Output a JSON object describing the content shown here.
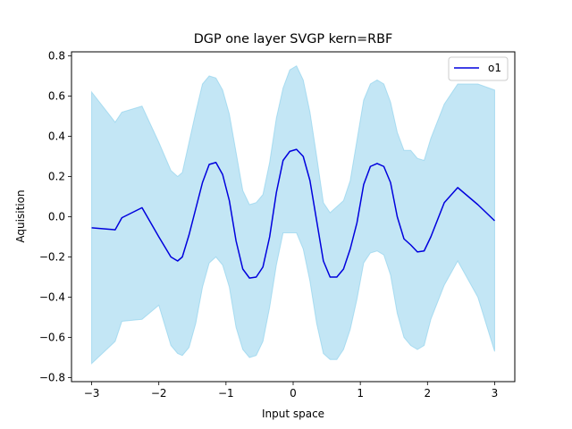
{
  "chart_data": {
    "type": "line",
    "title": "DGP one layer SVGP kern=RBF",
    "xlabel": "Input space",
    "ylabel": "Aquisition",
    "xlim": [
      -3.3,
      3.3
    ],
    "ylim": [
      -0.82,
      0.82
    ],
    "x_ticks": [
      -3,
      -2,
      -1,
      0,
      1,
      2,
      3
    ],
    "x_tick_labels": [
      "−3",
      "−2",
      "−1",
      "0",
      "1",
      "2",
      "3"
    ],
    "y_ticks": [
      -0.8,
      -0.6,
      -0.4,
      -0.2,
      0.0,
      0.2,
      0.4,
      0.6,
      0.8
    ],
    "y_tick_labels": [
      "−0.8",
      "−0.6",
      "−0.4",
      "−0.2",
      "0.0",
      "0.2",
      "0.4",
      "0.6",
      "0.8"
    ],
    "grid": false,
    "legend_position": "top-right",
    "line_color": "#0000dd",
    "band_color": "#87ceeb",
    "series": [
      {
        "name": "o1",
        "x": [
          -3.0,
          -2.65,
          -2.55,
          -2.25,
          -2.0,
          -1.82,
          -1.72,
          -1.65,
          -1.55,
          -1.45,
          -1.35,
          -1.25,
          -1.15,
          -1.05,
          -0.95,
          -0.85,
          -0.75,
          -0.65,
          -0.55,
          -0.45,
          -0.35,
          -0.25,
          -0.15,
          -0.05,
          0.05,
          0.15,
          0.25,
          0.35,
          0.45,
          0.55,
          0.65,
          0.75,
          0.85,
          0.95,
          1.05,
          1.15,
          1.25,
          1.35,
          1.45,
          1.55,
          1.65,
          1.75,
          1.85,
          1.95,
          2.05,
          2.25,
          2.45,
          2.75,
          3.0
        ],
        "y": [
          -0.055,
          -0.065,
          -0.005,
          0.045,
          -0.1,
          -0.2,
          -0.22,
          -0.2,
          -0.09,
          0.04,
          0.17,
          0.26,
          0.27,
          0.21,
          0.08,
          -0.12,
          -0.26,
          -0.305,
          -0.3,
          -0.25,
          -0.1,
          0.12,
          0.28,
          0.325,
          0.335,
          0.3,
          0.18,
          -0.02,
          -0.22,
          -0.3,
          -0.3,
          -0.26,
          -0.16,
          -0.03,
          0.16,
          0.25,
          0.265,
          0.25,
          0.17,
          0.0,
          -0.11,
          -0.14,
          -0.175,
          -0.17,
          -0.1,
          0.07,
          0.145,
          0.06,
          -0.02
        ],
        "lower": [
          -0.73,
          -0.62,
          -0.52,
          -0.51,
          -0.44,
          -0.64,
          -0.68,
          -0.69,
          -0.65,
          -0.53,
          -0.35,
          -0.23,
          -0.2,
          -0.24,
          -0.35,
          -0.55,
          -0.66,
          -0.7,
          -0.69,
          -0.62,
          -0.45,
          -0.24,
          -0.08,
          -0.08,
          -0.08,
          -0.16,
          -0.32,
          -0.53,
          -0.68,
          -0.71,
          -0.71,
          -0.66,
          -0.56,
          -0.41,
          -0.23,
          -0.18,
          -0.17,
          -0.19,
          -0.29,
          -0.48,
          -0.6,
          -0.64,
          -0.66,
          -0.64,
          -0.51,
          -0.34,
          -0.22,
          -0.4,
          -0.67
        ],
        "upper": [
          0.62,
          0.47,
          0.52,
          0.55,
          0.37,
          0.23,
          0.2,
          0.22,
          0.37,
          0.52,
          0.66,
          0.7,
          0.69,
          0.63,
          0.51,
          0.32,
          0.13,
          0.06,
          0.07,
          0.11,
          0.27,
          0.49,
          0.64,
          0.73,
          0.75,
          0.68,
          0.52,
          0.3,
          0.07,
          0.02,
          0.05,
          0.08,
          0.18,
          0.38,
          0.58,
          0.66,
          0.68,
          0.66,
          0.57,
          0.42,
          0.33,
          0.33,
          0.29,
          0.28,
          0.39,
          0.56,
          0.66,
          0.66,
          0.63
        ]
      }
    ]
  }
}
